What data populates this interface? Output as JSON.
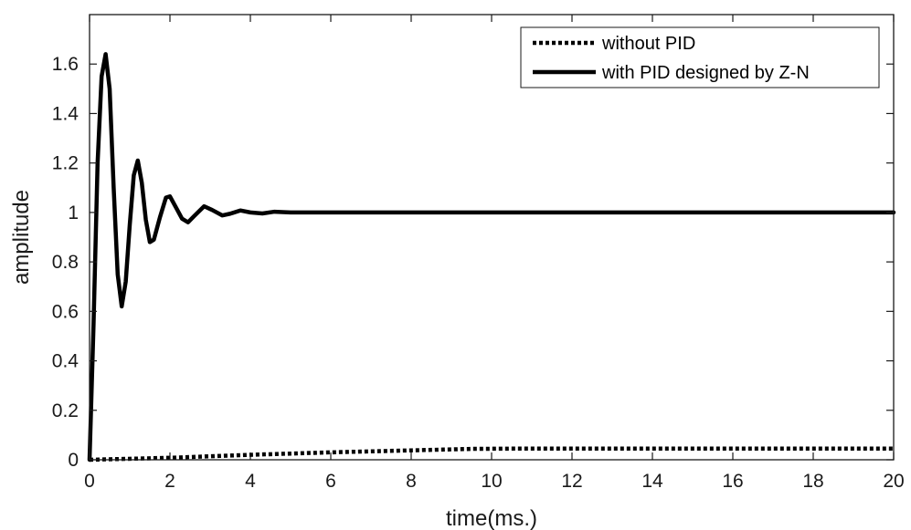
{
  "chart_data": {
    "type": "line",
    "title": "",
    "xlabel": "time(ms.)",
    "ylabel": "amplitude",
    "xlim": [
      0,
      20
    ],
    "ylim": [
      0,
      1.8
    ],
    "x_ticks": [
      0,
      2,
      4,
      6,
      8,
      10,
      12,
      14,
      16,
      18,
      20
    ],
    "y_ticks": [
      0,
      0.2,
      0.4,
      0.6,
      0.8,
      1,
      1.2,
      1.4,
      1.6
    ],
    "y_tick_labels": [
      "0",
      "0.2",
      "0.4",
      "0.6",
      "0.8",
      "1",
      "1.2",
      "1.4",
      "1.6"
    ],
    "grid": false,
    "legend_position": "top-right",
    "series": [
      {
        "name": "without PID",
        "style": "dotted",
        "color": "#000000",
        "points": [
          [
            0,
            0
          ],
          [
            2,
            0.008
          ],
          [
            4,
            0.02
          ],
          [
            6,
            0.03
          ],
          [
            8,
            0.038
          ],
          [
            9.5,
            0.044
          ],
          [
            10.5,
            0.045
          ],
          [
            12,
            0.045
          ],
          [
            14,
            0.045
          ],
          [
            16,
            0.045
          ],
          [
            18,
            0.045
          ],
          [
            20,
            0.045
          ]
        ]
      },
      {
        "name": "with PID designed by Z-N",
        "style": "solid",
        "color": "#000000",
        "points": [
          [
            0,
            0
          ],
          [
            0.1,
            0.55
          ],
          [
            0.2,
            1.2
          ],
          [
            0.3,
            1.55
          ],
          [
            0.4,
            1.64
          ],
          [
            0.5,
            1.5
          ],
          [
            0.6,
            1.1
          ],
          [
            0.7,
            0.75
          ],
          [
            0.8,
            0.62
          ],
          [
            0.9,
            0.72
          ],
          [
            1.0,
            0.95
          ],
          [
            1.1,
            1.15
          ],
          [
            1.2,
            1.21
          ],
          [
            1.3,
            1.12
          ],
          [
            1.4,
            0.97
          ],
          [
            1.5,
            0.88
          ],
          [
            1.6,
            0.89
          ],
          [
            1.75,
            0.98
          ],
          [
            1.9,
            1.06
          ],
          [
            2.0,
            1.065
          ],
          [
            2.15,
            1.02
          ],
          [
            2.3,
            0.975
          ],
          [
            2.45,
            0.96
          ],
          [
            2.6,
            0.985
          ],
          [
            2.85,
            1.025
          ],
          [
            3.05,
            1.01
          ],
          [
            3.3,
            0.988
          ],
          [
            3.5,
            0.995
          ],
          [
            3.75,
            1.008
          ],
          [
            4.0,
            1.0
          ],
          [
            4.3,
            0.996
          ],
          [
            4.6,
            1.003
          ],
          [
            5.0,
            1.0
          ],
          [
            6,
            1.0
          ],
          [
            8,
            1.0
          ],
          [
            10,
            1.0
          ],
          [
            12,
            1.0
          ],
          [
            14,
            1.0
          ],
          [
            16,
            1.0
          ],
          [
            18,
            1.0
          ],
          [
            20,
            1.0
          ]
        ]
      }
    ]
  }
}
